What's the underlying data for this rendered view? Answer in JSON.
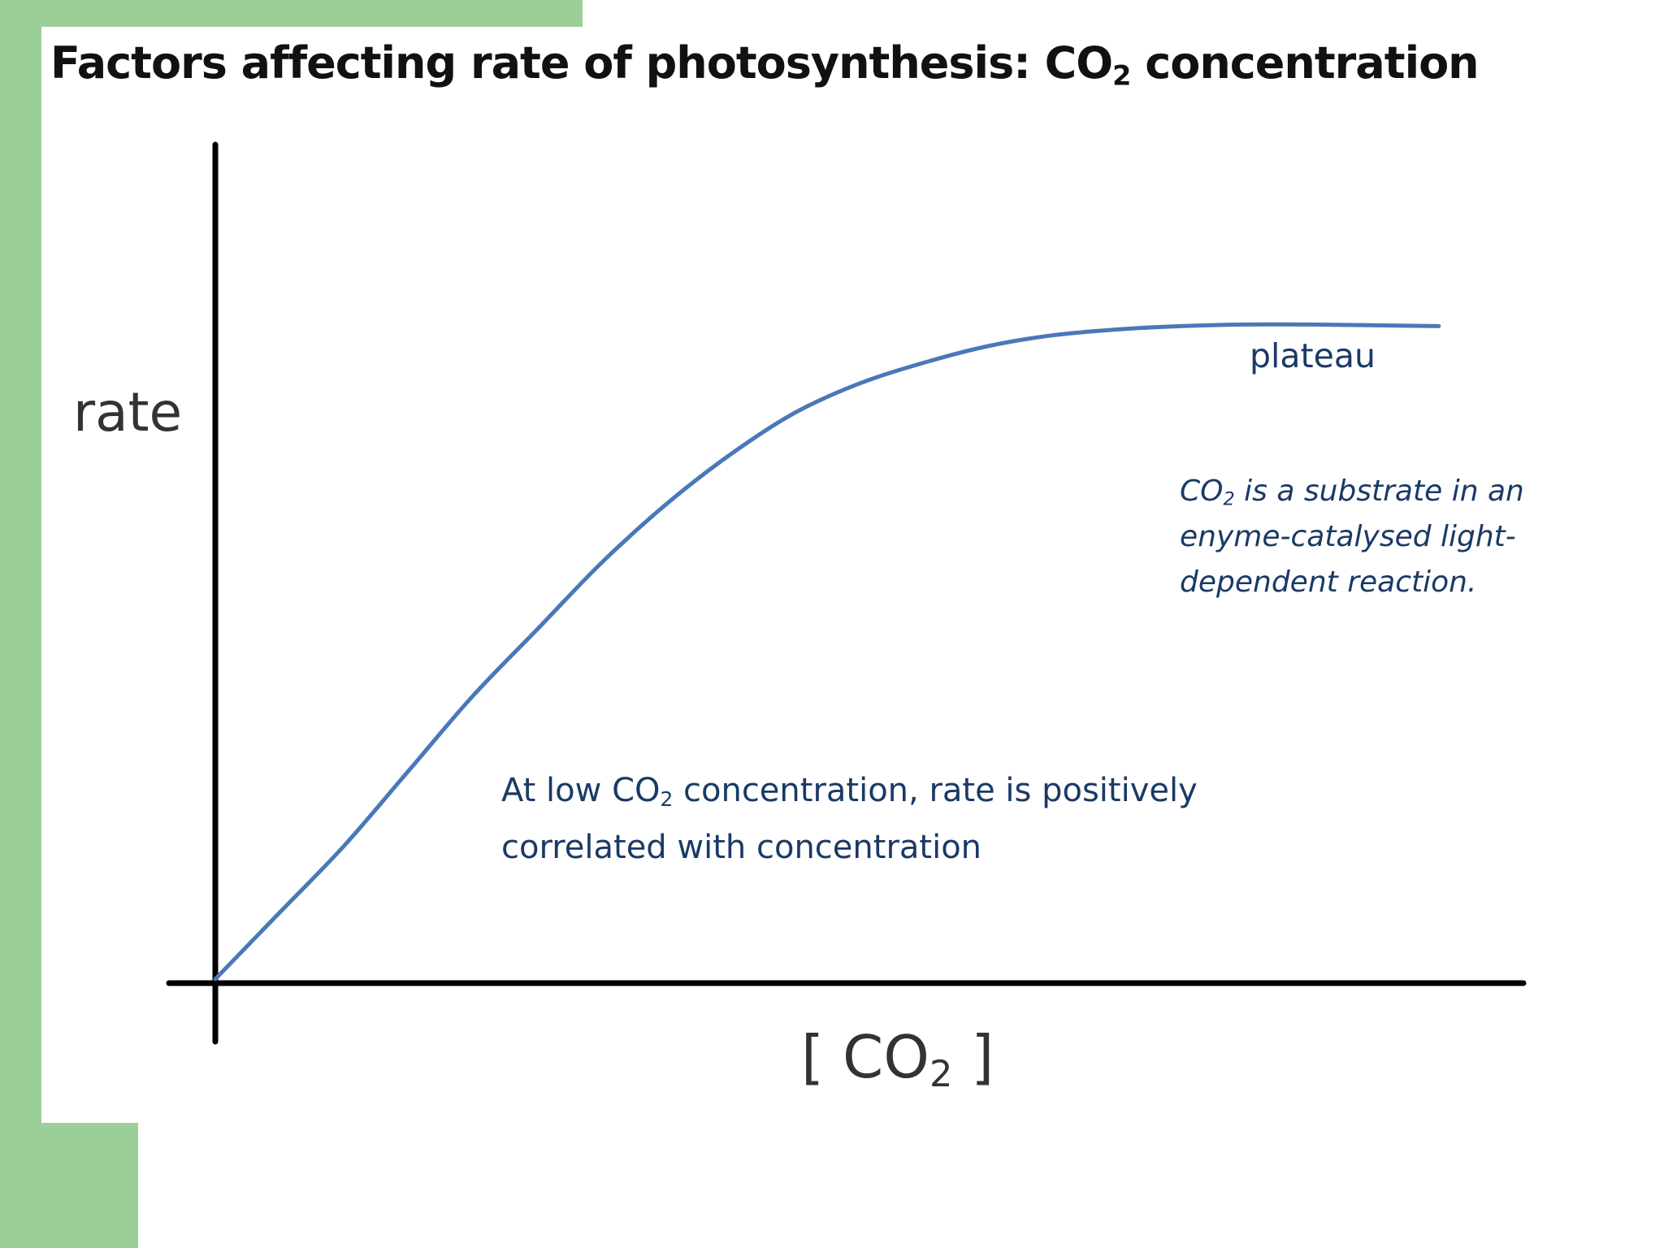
{
  "title": {
    "prefix": "Factors affecting rate of photosynthesis: CO",
    "sub": "2",
    "suffix": " concentration"
  },
  "chart_data": {
    "type": "line",
    "title": "Factors affecting rate of photosynthesis: CO2 concentration",
    "ylabel": "rate",
    "xlabel": "[CO2]",
    "xlim": [
      0,
      10
    ],
    "ylim": [
      0,
      10
    ],
    "grid": false,
    "series_color": "#4a78b8",
    "series": [
      {
        "x": [
          0,
          0.5,
          1.0,
          1.5,
          2.0,
          2.5,
          3.0,
          3.5,
          4.0,
          4.5,
          5.0,
          5.5,
          6.0,
          6.5,
          7.0,
          7.5,
          8.0,
          8.5,
          9.0,
          9.5
        ],
        "values": [
          0.0,
          0.8,
          1.6,
          2.5,
          3.4,
          4.2,
          5.0,
          5.7,
          6.3,
          6.8,
          7.15,
          7.4,
          7.6,
          7.73,
          7.8,
          7.84,
          7.86,
          7.86,
          7.85,
          7.84
        ]
      }
    ],
    "annotations": {
      "plateau": "plateau",
      "substrate": {
        "prefix": "CO",
        "sub": "2",
        "suffix": " is a substrate in an enyme-catalysed light-dependent reaction."
      },
      "low": {
        "prefix": "At low CO",
        "sub": "2",
        "suffix": " concentration, rate is positively correlated with concentration"
      }
    }
  },
  "labels": {
    "y": "rate",
    "x_open": "[",
    "x_main": "CO",
    "x_sub": "2",
    "x_close": "]"
  }
}
